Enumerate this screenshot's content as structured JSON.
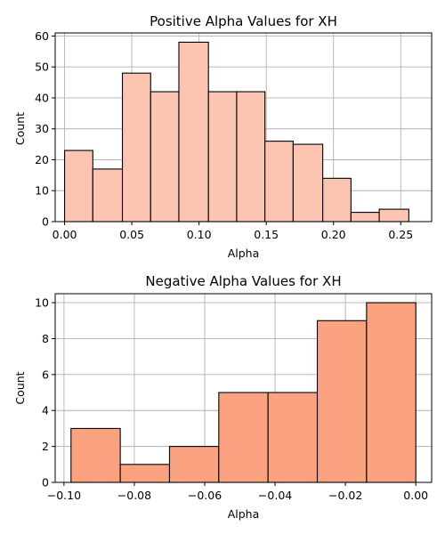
{
  "chart_data": [
    {
      "type": "bar",
      "title": "Positive Alpha Values for XH",
      "xlabel": "Alpha",
      "ylabel": "Count",
      "color": "#fbc5b1",
      "xlim": [
        -0.007,
        0.273
      ],
      "ylim": [
        0,
        61
      ],
      "grid": true,
      "xticks": [
        0.0,
        0.05,
        0.1,
        0.15,
        0.2,
        0.25
      ],
      "xtick_labels": [
        "0.00",
        "0.05",
        "0.10",
        "0.15",
        "0.20",
        "0.25"
      ],
      "yticks": [
        0,
        10,
        20,
        30,
        40,
        50,
        60
      ],
      "ytick_labels": [
        "0",
        "10",
        "20",
        "30",
        "40",
        "50",
        "60"
      ],
      "bins": [
        {
          "start": 0.0,
          "end": 0.021,
          "count": 23
        },
        {
          "start": 0.021,
          "end": 0.043,
          "count": 17
        },
        {
          "start": 0.043,
          "end": 0.064,
          "count": 48
        },
        {
          "start": 0.064,
          "end": 0.085,
          "count": 42
        },
        {
          "start": 0.085,
          "end": 0.107,
          "count": 58
        },
        {
          "start": 0.107,
          "end": 0.128,
          "count": 42
        },
        {
          "start": 0.128,
          "end": 0.149,
          "count": 42
        },
        {
          "start": 0.149,
          "end": 0.17,
          "count": 26
        },
        {
          "start": 0.17,
          "end": 0.192,
          "count": 25
        },
        {
          "start": 0.192,
          "end": 0.213,
          "count": 14
        },
        {
          "start": 0.213,
          "end": 0.234,
          "count": 3
        },
        {
          "start": 0.234,
          "end": 0.256,
          "count": 4
        }
      ]
    },
    {
      "type": "bar",
      "title": "Negative Alpha Values for XH",
      "xlabel": "Alpha",
      "ylabel": "Count",
      "color": "#fba381",
      "xlim": [
        -0.1025,
        0.0045
      ],
      "ylim": [
        0,
        10.5
      ],
      "grid": true,
      "xticks": [
        -0.1,
        -0.08,
        -0.06,
        -0.04,
        -0.02,
        0.0
      ],
      "xtick_labels": [
        "−0.10",
        "−0.08",
        "−0.06",
        "−0.04",
        "−0.02",
        "0.00"
      ],
      "yticks": [
        0,
        2,
        4,
        6,
        8,
        10
      ],
      "ytick_labels": [
        "0",
        "2",
        "4",
        "6",
        "8",
        "10"
      ],
      "bins": [
        {
          "start": -0.098,
          "end": -0.084,
          "count": 3
        },
        {
          "start": -0.084,
          "end": -0.07,
          "count": 1
        },
        {
          "start": -0.07,
          "end": -0.056,
          "count": 2
        },
        {
          "start": -0.056,
          "end": -0.042,
          "count": 5
        },
        {
          "start": -0.042,
          "end": -0.028,
          "count": 5
        },
        {
          "start": -0.028,
          "end": -0.014,
          "count": 9
        },
        {
          "start": -0.014,
          "end": 0.0,
          "count": 10
        }
      ]
    }
  ]
}
